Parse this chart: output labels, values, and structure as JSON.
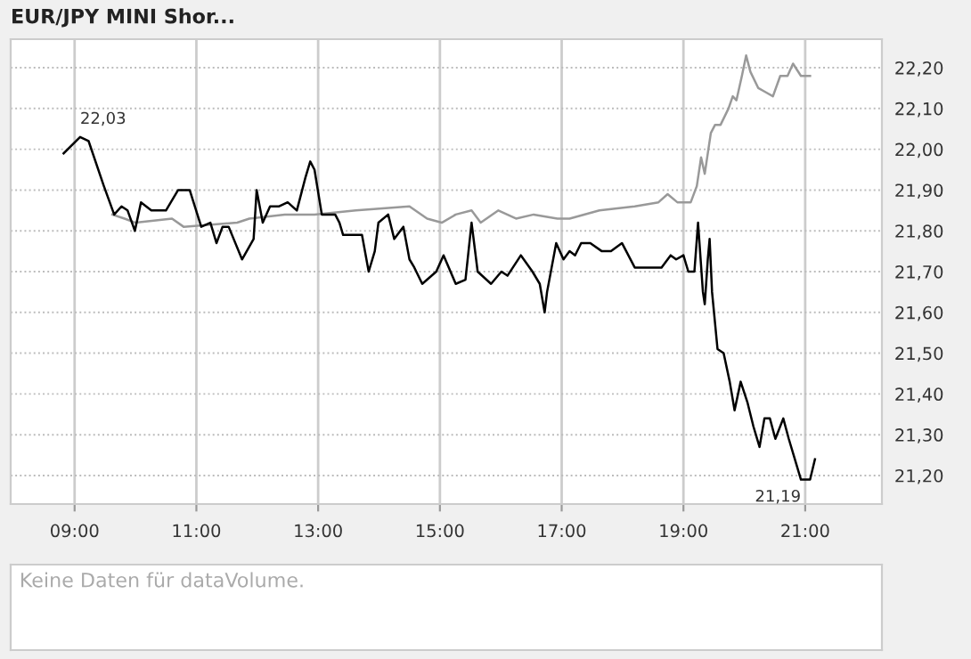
{
  "chart_data": {
    "type": "line",
    "title": "EUR/JPY MINI Shor...",
    "xlim": [
      7.95,
      22.26
    ],
    "ylim": [
      21.13,
      22.27
    ],
    "xticks": [
      {
        "value": 9,
        "label": "09:00"
      },
      {
        "value": 11,
        "label": "11:00"
      },
      {
        "value": 13,
        "label": "13:00"
      },
      {
        "value": 15,
        "label": "15:00"
      },
      {
        "value": 17,
        "label": "17:00"
      },
      {
        "value": 19,
        "label": "19:00"
      },
      {
        "value": 21,
        "label": "21:00"
      }
    ],
    "yticks": [
      {
        "value": 21.2,
        "label": "21,20"
      },
      {
        "value": 21.3,
        "label": "21,30"
      },
      {
        "value": 21.4,
        "label": "21,40"
      },
      {
        "value": 21.5,
        "label": "21,50"
      },
      {
        "value": 21.6,
        "label": "21,60"
      },
      {
        "value": 21.7,
        "label": "21,70"
      },
      {
        "value": 21.8,
        "label": "21,80"
      },
      {
        "value": 21.9,
        "label": "21,90"
      },
      {
        "value": 22.0,
        "label": "22,00"
      },
      {
        "value": 22.1,
        "label": "22,10"
      },
      {
        "value": 22.2,
        "label": "22,20"
      }
    ],
    "grid": true,
    "series": [
      {
        "color": "#999999",
        "x": [
          9.62,
          9.82,
          10.0,
          10.6,
          10.79,
          11.67,
          11.87,
          12.45,
          12.94,
          13.62,
          14.5,
          14.79,
          15.03,
          15.26,
          15.52,
          15.67,
          15.96,
          16.25,
          16.54,
          16.93,
          17.13,
          17.62,
          18.2,
          18.59,
          18.74,
          18.9,
          19.12,
          19.22,
          19.29,
          19.35,
          19.45,
          19.52,
          19.61,
          19.74,
          19.81,
          19.87,
          19.96,
          20.03,
          20.1,
          20.23,
          20.35,
          20.47,
          20.59,
          20.71,
          20.8,
          20.93,
          21.08
        ],
        "values": [
          21.84,
          21.83,
          21.82,
          21.83,
          21.81,
          21.82,
          21.83,
          21.84,
          21.84,
          21.85,
          21.86,
          21.83,
          21.82,
          21.84,
          21.85,
          21.82,
          21.85,
          21.83,
          21.84,
          21.83,
          21.83,
          21.85,
          21.86,
          21.87,
          21.89,
          21.87,
          21.87,
          21.91,
          21.98,
          21.94,
          22.04,
          22.06,
          22.06,
          22.1,
          22.13,
          22.12,
          22.18,
          22.23,
          22.19,
          22.15,
          22.14,
          22.13,
          22.18,
          22.18,
          22.21,
          22.18,
          22.18
        ]
      },
      {
        "color": "#000000",
        "x": [
          8.82,
          9.09,
          9.23,
          9.48,
          9.65,
          9.77,
          9.87,
          9.99,
          10.09,
          10.26,
          10.38,
          10.5,
          10.7,
          10.89,
          11.08,
          11.23,
          11.33,
          11.43,
          11.53,
          11.75,
          11.94,
          11.99,
          12.09,
          12.21,
          12.36,
          12.5,
          12.65,
          12.79,
          12.87,
          12.94,
          13.06,
          13.28,
          13.35,
          13.41,
          13.72,
          13.83,
          13.93,
          13.99,
          14.15,
          14.25,
          14.4,
          14.5,
          14.58,
          14.71,
          14.94,
          15.06,
          15.26,
          15.42,
          15.52,
          15.62,
          15.84,
          16.01,
          16.11,
          16.33,
          16.52,
          16.64,
          16.72,
          16.76,
          16.91,
          17.03,
          17.13,
          17.22,
          17.32,
          17.47,
          17.66,
          17.81,
          17.99,
          18.2,
          18.35,
          18.49,
          18.64,
          18.79,
          18.88,
          19.0,
          19.08,
          19.18,
          19.24,
          19.32,
          19.35,
          19.4,
          19.43,
          19.47,
          19.56,
          19.66,
          19.76,
          19.84,
          19.94,
          20.05,
          20.15,
          20.25,
          20.33,
          20.42,
          20.51,
          20.64,
          20.73,
          20.93,
          21.08,
          21.16
        ],
        "values": [
          21.99,
          22.03,
          22.02,
          21.91,
          21.84,
          21.86,
          21.85,
          21.8,
          21.87,
          21.85,
          21.85,
          21.85,
          21.9,
          21.9,
          21.81,
          21.82,
          21.77,
          21.81,
          21.81,
          21.73,
          21.78,
          21.9,
          21.82,
          21.86,
          21.86,
          21.87,
          21.85,
          21.93,
          21.97,
          21.95,
          21.84,
          21.84,
          21.82,
          21.79,
          21.79,
          21.7,
          21.75,
          21.82,
          21.84,
          21.78,
          21.81,
          21.73,
          21.71,
          21.67,
          21.7,
          21.74,
          21.67,
          21.68,
          21.82,
          21.7,
          21.67,
          21.7,
          21.69,
          21.74,
          21.7,
          21.67,
          21.6,
          21.65,
          21.77,
          21.73,
          21.75,
          21.74,
          21.77,
          21.77,
          21.75,
          21.75,
          21.77,
          21.71,
          21.71,
          21.71,
          21.71,
          21.74,
          21.73,
          21.74,
          21.7,
          21.7,
          21.82,
          21.65,
          21.62,
          21.73,
          21.78,
          21.65,
          21.51,
          21.5,
          21.43,
          21.36,
          21.43,
          21.38,
          21.32,
          21.27,
          21.34,
          21.34,
          21.29,
          21.34,
          21.29,
          21.19,
          21.19,
          21.24
        ]
      }
    ],
    "annotations": [
      {
        "text": "22,03",
        "x": 9.09,
        "y": 22.03
      },
      {
        "text": "21,19",
        "x": 20.93,
        "y": 21.19
      },
      "Keine Daten für dataVolume."
    ]
  }
}
